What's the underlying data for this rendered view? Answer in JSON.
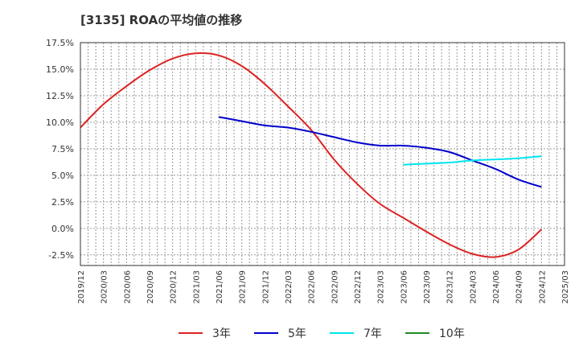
{
  "title": "[3135]  ROAの平均値の推移",
  "chart_data": {
    "type": "line",
    "title": "[3135]  ROAの平均値の推移",
    "xlabel": "",
    "ylabel": "",
    "ylim": [
      -3.5,
      17.5
    ],
    "y_ticks": [
      17.5,
      15.0,
      12.5,
      10.0,
      7.5,
      5.0,
      2.5,
      0.0,
      -2.5
    ],
    "y_tick_labels": [
      "17.5%",
      "15.0%",
      "12.5%",
      "10.0%",
      "7.5%",
      "5.0%",
      "2.5%",
      "0.0%",
      "-2.5%"
    ],
    "x_tick_labels": [
      "2019/12",
      "2020/03",
      "2020/06",
      "2020/09",
      "2020/12",
      "2021/03",
      "2021/06",
      "2021/09",
      "2021/12",
      "2022/03",
      "2022/06",
      "2022/09",
      "2022/12",
      "2023/03",
      "2023/06",
      "2023/09",
      "2023/12",
      "2024/03",
      "2024/06",
      "2024/09",
      "2024/12",
      "2025/03"
    ],
    "grid": true,
    "legend_position": "bottom",
    "series": [
      {
        "name": "3年",
        "color": "#dd2222",
        "x": [
          "2019/12",
          "2020/03",
          "2020/06",
          "2020/09",
          "2020/12",
          "2021/03",
          "2021/06",
          "2021/09",
          "2021/12",
          "2022/03",
          "2022/06",
          "2022/09",
          "2022/12",
          "2023/03",
          "2023/06",
          "2023/09",
          "2023/12",
          "2024/03",
          "2024/06",
          "2024/09",
          "2024/12"
        ],
        "values": [
          9.5,
          11.7,
          13.4,
          14.9,
          16.0,
          16.5,
          16.3,
          15.3,
          13.6,
          11.5,
          9.3,
          6.5,
          4.2,
          2.3,
          1.0,
          -0.3,
          -1.5,
          -2.4,
          -2.7,
          -2.0,
          -0.1
        ]
      },
      {
        "name": "5年",
        "color": "#0000cc",
        "x": [
          "2021/06",
          "2021/09",
          "2021/12",
          "2022/03",
          "2022/06",
          "2022/09",
          "2022/12",
          "2023/03",
          "2023/06",
          "2023/09",
          "2023/12",
          "2024/03",
          "2024/06",
          "2024/09",
          "2024/12"
        ],
        "values": [
          10.5,
          10.1,
          9.7,
          9.5,
          9.1,
          8.6,
          8.1,
          7.8,
          7.8,
          7.6,
          7.2,
          6.4,
          5.6,
          4.6,
          3.9
        ]
      },
      {
        "name": "7年",
        "color": "#00e5ee",
        "x": [
          "2023/06",
          "2023/09",
          "2023/12",
          "2024/03",
          "2024/06",
          "2024/09",
          "2024/12"
        ],
        "values": [
          6.0,
          6.1,
          6.2,
          6.4,
          6.5,
          6.6,
          6.8
        ]
      },
      {
        "name": "10年",
        "color": "#228b22",
        "x": [],
        "values": []
      }
    ]
  }
}
